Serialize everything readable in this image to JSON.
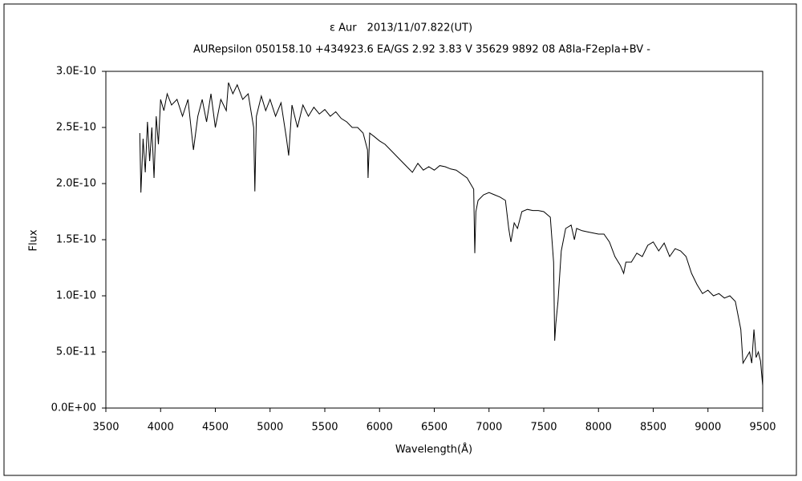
{
  "chart_data": {
    "type": "line",
    "title": "ε Aur　2013/11/07.822(UT)",
    "subtitle": "AURepsilon 050158.10 +434923.6 EA/GS 2.92 3.83 V 35629 9892 08 A8Ia-F2epIa+BV -",
    "x_label": "Wavelength(Å)",
    "y_label": "Flux",
    "color": "#000000",
    "grid": false,
    "xlim": [
      3500,
      9500
    ],
    "xticks": [
      3500,
      4000,
      4500,
      5000,
      5500,
      6000,
      6500,
      7000,
      7500,
      8000,
      8500,
      9000,
      9500
    ],
    "ylim": [
      0,
      3e-10
    ],
    "yticks": [
      {
        "value": 0,
        "label": "0.0E+00"
      },
      {
        "value": 5e-11,
        "label": "5.0E-11"
      },
      {
        "value": 1e-10,
        "label": "1.0E-10"
      },
      {
        "value": 1.5e-10,
        "label": "1.5E-10"
      },
      {
        "value": 2e-10,
        "label": "2.0E-10"
      },
      {
        "value": 2.5e-10,
        "label": "2.5E-10"
      },
      {
        "value": 3e-10,
        "label": "3.0E-10"
      }
    ],
    "x": [
      3810,
      3820,
      3840,
      3860,
      3880,
      3900,
      3920,
      3940,
      3960,
      3980,
      4000,
      4030,
      4060,
      4100,
      4150,
      4200,
      4250,
      4300,
      4340,
      4380,
      4420,
      4460,
      4500,
      4550,
      4600,
      4620,
      4660,
      4700,
      4750,
      4800,
      4850,
      4861,
      4875,
      4920,
      4960,
      5000,
      5050,
      5100,
      5150,
      5170,
      5200,
      5250,
      5300,
      5350,
      5400,
      5450,
      5500,
      5550,
      5600,
      5650,
      5700,
      5750,
      5800,
      5850,
      5890,
      5895,
      5910,
      5950,
      6000,
      6050,
      6100,
      6150,
      6200,
      6250,
      6300,
      6350,
      6400,
      6450,
      6500,
      6550,
      6600,
      6650,
      6700,
      6800,
      6860,
      6870,
      6880,
      6900,
      6950,
      7000,
      7050,
      7100,
      7150,
      7180,
      7200,
      7230,
      7260,
      7300,
      7350,
      7400,
      7450,
      7500,
      7560,
      7590,
      7600,
      7610,
      7630,
      7660,
      7700,
      7750,
      7780,
      7800,
      7850,
      7900,
      7950,
      8000,
      8050,
      8100,
      8150,
      8200,
      8230,
      8250,
      8300,
      8350,
      8400,
      8450,
      8500,
      8550,
      8600,
      8650,
      8700,
      8750,
      8800,
      8850,
      8900,
      8950,
      9000,
      9050,
      9100,
      9150,
      9200,
      9250,
      9300,
      9320,
      9350,
      9380,
      9400,
      9420,
      9440,
      9460,
      9480,
      9500
    ],
    "values": [
      2.45e-10,
      1.92e-10,
      2.4e-10,
      2.1e-10,
      2.55e-10,
      2.2e-10,
      2.5e-10,
      2.05e-10,
      2.6e-10,
      2.35e-10,
      2.75e-10,
      2.65e-10,
      2.8e-10,
      2.7e-10,
      2.75e-10,
      2.6e-10,
      2.75e-10,
      2.3e-10,
      2.6e-10,
      2.75e-10,
      2.55e-10,
      2.8e-10,
      2.5e-10,
      2.75e-10,
      2.65e-10,
      2.9e-10,
      2.8e-10,
      2.88e-10,
      2.75e-10,
      2.8e-10,
      2.5e-10,
      1.93e-10,
      2.6e-10,
      2.78e-10,
      2.65e-10,
      2.75e-10,
      2.6e-10,
      2.72e-10,
      2.4e-10,
      2.25e-10,
      2.7e-10,
      2.5e-10,
      2.7e-10,
      2.6e-10,
      2.68e-10,
      2.62e-10,
      2.66e-10,
      2.6e-10,
      2.64e-10,
      2.58e-10,
      2.55e-10,
      2.5e-10,
      2.5e-10,
      2.45e-10,
      2.3e-10,
      2.05e-10,
      2.45e-10,
      2.42e-10,
      2.38e-10,
      2.35e-10,
      2.3e-10,
      2.25e-10,
      2.2e-10,
      2.15e-10,
      2.1e-10,
      2.18e-10,
      2.12e-10,
      2.15e-10,
      2.12e-10,
      2.16e-10,
      2.15e-10,
      2.13e-10,
      2.12e-10,
      2.05e-10,
      1.95e-10,
      1.38e-10,
      1.75e-10,
      1.85e-10,
      1.9e-10,
      1.92e-10,
      1.9e-10,
      1.88e-10,
      1.85e-10,
      1.6e-10,
      1.48e-10,
      1.65e-10,
      1.6e-10,
      1.75e-10,
      1.77e-10,
      1.76e-10,
      1.76e-10,
      1.75e-10,
      1.7e-10,
      1.3e-10,
      6e-11,
      7.5e-11,
      9.5e-11,
      1.4e-10,
      1.6e-10,
      1.63e-10,
      1.5e-10,
      1.6e-10,
      1.58e-10,
      1.57e-10,
      1.56e-10,
      1.55e-10,
      1.55e-10,
      1.48e-10,
      1.35e-10,
      1.27e-10,
      1.2e-10,
      1.3e-10,
      1.3e-10,
      1.38e-10,
      1.35e-10,
      1.45e-10,
      1.48e-10,
      1.4e-10,
      1.47e-10,
      1.35e-10,
      1.42e-10,
      1.4e-10,
      1.35e-10,
      1.2e-10,
      1.1e-10,
      1.02e-10,
      1.05e-10,
      1e-10,
      1.02e-10,
      9.8e-11,
      1e-10,
      9.5e-11,
      7e-11,
      4e-11,
      4.5e-11,
      5e-11,
      4e-11,
      7e-11,
      4.5e-11,
      5e-11,
      4.2e-11,
      2e-11
    ]
  }
}
